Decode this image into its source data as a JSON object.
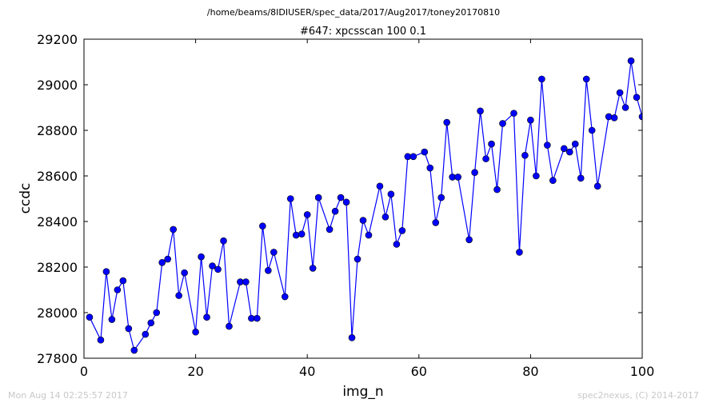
{
  "suptitle": "/home/beams/8IDIUSER/spec_data/2017/Aug2017/toney20170810",
  "footer_left": "Mon Aug 14 02:25:57 2017",
  "footer_right": "spec2nexus, (C) 2014-2017",
  "chart_data": {
    "type": "line",
    "title": "#647: xpcsscan 100 0.1",
    "xlabel": "img_n",
    "ylabel": "ccdc",
    "xlim": [
      0,
      100
    ],
    "ylim": [
      27800,
      29200
    ],
    "xticks": [
      0,
      20,
      40,
      60,
      80,
      100
    ],
    "yticks": [
      27800,
      28000,
      28200,
      28400,
      28600,
      28800,
      29000,
      29200
    ],
    "grid": false,
    "line_color": "#0000ff",
    "marker_color": "#0000ff",
    "series": [
      {
        "x": [
          1,
          3,
          4,
          5,
          6,
          7,
          8,
          9,
          11,
          12,
          13,
          14,
          15,
          16,
          17,
          18,
          20,
          21,
          22,
          23,
          24,
          25,
          26,
          28,
          29,
          30,
          31,
          32,
          33,
          34,
          36,
          37,
          38,
          39,
          40,
          41,
          42,
          44,
          45,
          46,
          47,
          48,
          49,
          50,
          51,
          53,
          54,
          55,
          56,
          57,
          58,
          59,
          61,
          62,
          63,
          64,
          65,
          66,
          67,
          69,
          70,
          71,
          72,
          73,
          74,
          75,
          77,
          78,
          79,
          80,
          81,
          82,
          83,
          84,
          86,
          87,
          88,
          89,
          90,
          91,
          92,
          94,
          95,
          96,
          97,
          98,
          99,
          100
        ],
        "y": [
          27980,
          27880,
          28180,
          27970,
          28100,
          28140,
          27930,
          27835,
          27905,
          27955,
          28000,
          28220,
          28235,
          28365,
          28075,
          28175,
          27915,
          28245,
          27980,
          28205,
          28190,
          28315,
          27940,
          28135,
          28135,
          27975,
          27975,
          28380,
          28185,
          28265,
          28070,
          28500,
          28340,
          28345,
          28430,
          28195,
          28505,
          28365,
          28445,
          28505,
          28485,
          27890,
          28235,
          28405,
          28340,
          28555,
          28420,
          28520,
          28300,
          28360,
          28685,
          28685,
          28705,
          28635,
          28395,
          28505,
          28835,
          28595,
          28595,
          28320,
          28615,
          28885,
          28675,
          28740,
          28540,
          28830,
          28875,
          28265,
          28690,
          28845,
          28600,
          29025,
          28735,
          28580,
          28720,
          28705,
          28740,
          28590,
          29025,
          28800,
          28555,
          28860,
          28855,
          28965,
          28900,
          29105,
          28945,
          28860
        ]
      }
    ]
  }
}
